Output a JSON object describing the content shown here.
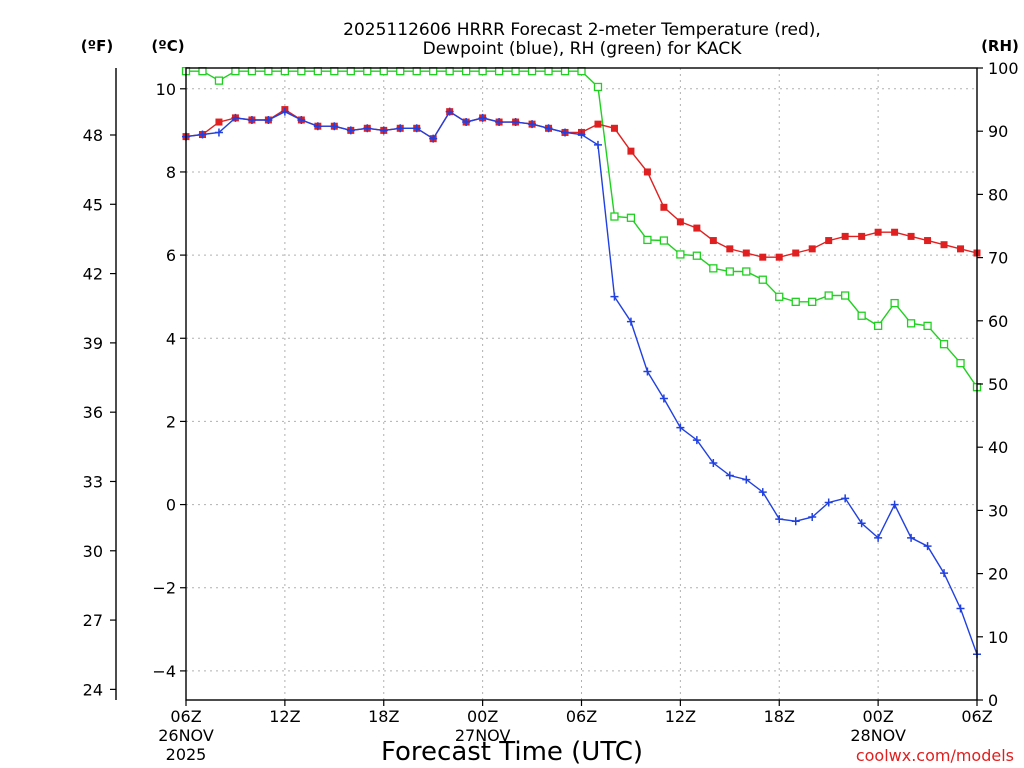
{
  "chart_data": {
    "type": "line",
    "title_lines": [
      "2025112606 HRRR Forecast 2-meter Temperature (red),",
      "Dewpoint (blue), RH (green) for KACK"
    ],
    "xlabel": "Forecast Time (UTC)",
    "credit": "coolwx.com/models",
    "units": {
      "fahrenheit": "(ºF)",
      "celsius": "(ºC)",
      "rh": "(RH)"
    },
    "x_hours": [
      0,
      1,
      2,
      3,
      4,
      5,
      6,
      7,
      8,
      9,
      10,
      11,
      12,
      13,
      14,
      15,
      16,
      17,
      18,
      19,
      20,
      21,
      22,
      23,
      24,
      25,
      26,
      27,
      28,
      29,
      30,
      31,
      32,
      33,
      34,
      35,
      36,
      37,
      38,
      39,
      40,
      41,
      42,
      43,
      44,
      45,
      46,
      47,
      48
    ],
    "xlim": [
      0,
      48
    ],
    "x_ticks": [
      {
        "hour": 0,
        "label": "06Z",
        "date": "26NOV",
        "year": "2025"
      },
      {
        "hour": 6,
        "label": "12Z"
      },
      {
        "hour": 12,
        "label": "18Z"
      },
      {
        "hour": 18,
        "label": "00Z",
        "date": "27NOV"
      },
      {
        "hour": 24,
        "label": "06Z"
      },
      {
        "hour": 30,
        "label": "12Z"
      },
      {
        "hour": 36,
        "label": "18Z"
      },
      {
        "hour": 42,
        "label": "00Z",
        "date": "28NOV"
      },
      {
        "hour": 48,
        "label": "06Z"
      }
    ],
    "celsius_axis": {
      "ylim": [
        -4.7,
        10.5
      ],
      "ticks": [
        "-4",
        "-2",
        "0",
        "2",
        "4",
        "6",
        "8",
        "10"
      ]
    },
    "fahrenheit_axis": {
      "ticks": [
        "24",
        "27",
        "30",
        "33",
        "36",
        "39",
        "42",
        "45",
        "48"
      ]
    },
    "rh_axis": {
      "ylim": [
        0,
        100
      ],
      "ticks": [
        "0",
        "10",
        "20",
        "30",
        "40",
        "50",
        "60",
        "70",
        "80",
        "90",
        "100"
      ]
    },
    "series": [
      {
        "name": "Temperature",
        "unit": "C",
        "color": "#e02020",
        "marker": "square",
        "values": [
          8.85,
          8.9,
          9.2,
          9.3,
          9.25,
          9.25,
          9.5,
          9.25,
          9.1,
          9.1,
          9.0,
          9.05,
          9.0,
          9.05,
          9.05,
          8.8,
          9.45,
          9.2,
          9.3,
          9.2,
          9.2,
          9.15,
          9.05,
          8.95,
          8.95,
          9.15,
          9.05,
          8.5,
          8.0,
          7.15,
          6.8,
          6.65,
          6.35,
          6.15,
          6.05,
          5.95,
          5.95,
          6.05,
          6.15,
          6.35,
          6.45,
          6.45,
          6.55,
          6.55,
          6.45,
          6.35,
          6.25,
          6.15,
          6.05
        ]
      },
      {
        "name": "Dewpoint",
        "unit": "C",
        "color": "#2040e0",
        "marker": "plus",
        "values": [
          8.85,
          8.9,
          8.95,
          9.3,
          9.25,
          9.25,
          9.45,
          9.25,
          9.1,
          9.1,
          9.0,
          9.05,
          9.0,
          9.05,
          9.05,
          8.8,
          9.45,
          9.2,
          9.3,
          9.2,
          9.2,
          9.15,
          9.05,
          8.95,
          8.9,
          8.65,
          5.0,
          4.4,
          3.2,
          2.55,
          1.85,
          1.55,
          1.0,
          0.7,
          0.6,
          0.3,
          -0.35,
          -0.4,
          -0.3,
          0.05,
          0.15,
          -0.45,
          -0.8,
          0.0,
          -0.8,
          -1.0,
          -1.65,
          -2.5,
          -3.6
        ]
      },
      {
        "name": "RH",
        "unit": "%",
        "color": "#20d020",
        "marker": "open-square",
        "values": [
          99.5,
          99.5,
          98,
          99.5,
          99.5,
          99.5,
          99.5,
          99.5,
          99.5,
          99.5,
          99.5,
          99.5,
          99.5,
          99.5,
          99.5,
          99.5,
          99.5,
          99.5,
          99.5,
          99.5,
          99.5,
          99.5,
          99.5,
          99.5,
          99.5,
          97,
          76.5,
          76.3,
          72.8,
          72.7,
          70.5,
          70.3,
          68.3,
          67.8,
          67.8,
          66.5,
          63.8,
          63,
          63,
          64,
          64,
          60.8,
          59.2,
          62.8,
          59.6,
          59.2,
          56.3,
          53.3,
          49.5
        ]
      }
    ]
  }
}
